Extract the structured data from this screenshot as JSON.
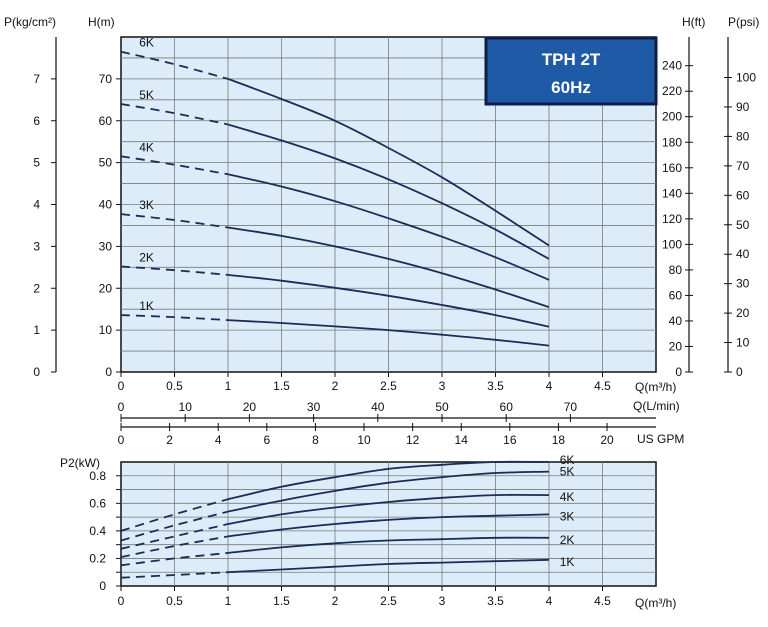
{
  "colors": {
    "plot_bg": "#dcecf9",
    "grid": "#7a7a7a",
    "curve": "#1c2b57",
    "frame": "#111111",
    "badge_bg": "#1f5aa6",
    "badge_border": "#0d1f44"
  },
  "chart_data": [
    {
      "type": "line",
      "title": "TPH 2T",
      "subtitle": "60Hz",
      "xlabel": "Q(m³/h)",
      "ylabel": "H(m)",
      "xlim": [
        0,
        5
      ],
      "ylim": [
        0,
        80
      ],
      "x_ticks": [
        "0",
        "0.5",
        "1",
        "1.5",
        "2",
        "2.5",
        "3",
        "3.5",
        "4",
        "4.5"
      ],
      "y_ticks": [
        "0",
        "10",
        "20",
        "30",
        "40",
        "50",
        "60",
        "70"
      ],
      "grid": true,
      "dashed_below_x": 1,
      "series": [
        {
          "name": "6K",
          "x": [
            0,
            0.5,
            1,
            1.5,
            2,
            2.5,
            3,
            3.5,
            4
          ],
          "y": [
            76.5,
            73.5,
            70,
            65.2,
            60,
            53.5,
            46.5,
            38.5,
            30.2
          ]
        },
        {
          "name": "5K",
          "x": [
            0,
            0.5,
            1,
            1.5,
            2,
            2.5,
            3,
            3.5,
            4
          ],
          "y": [
            64,
            61.8,
            59.1,
            55.3,
            51,
            46,
            40.3,
            34,
            27
          ]
        },
        {
          "name": "4K",
          "x": [
            0,
            0.5,
            1,
            1.5,
            2,
            2.5,
            3,
            3.5,
            4
          ],
          "y": [
            51.5,
            49.5,
            47.2,
            44.3,
            40.8,
            36.7,
            32.3,
            27.4,
            22
          ]
        },
        {
          "name": "3K",
          "x": [
            0,
            0.5,
            1,
            1.5,
            2,
            2.5,
            3,
            3.5,
            4
          ],
          "y": [
            37.7,
            36.3,
            34.5,
            32.5,
            30,
            27,
            23.6,
            19.7,
            15.5
          ]
        },
        {
          "name": "2K",
          "x": [
            0,
            0.5,
            1,
            1.5,
            2,
            2.5,
            3,
            3.5,
            4
          ],
          "y": [
            25.2,
            24.3,
            23.2,
            21.8,
            20.1,
            18.2,
            16,
            13.6,
            10.8
          ]
        },
        {
          "name": "1K",
          "x": [
            0,
            0.5,
            1,
            1.5,
            2,
            2.5,
            3,
            3.5,
            4
          ],
          "y": [
            13.6,
            13.1,
            12.4,
            11.7,
            10.9,
            10,
            8.9,
            7.7,
            6.3
          ]
        }
      ],
      "left_axis": {
        "label": "P(kg/cm²)",
        "ticks": [
          "0",
          "1",
          "2",
          "3",
          "4",
          "5",
          "6",
          "7"
        ],
        "values": [
          0,
          1,
          2,
          3,
          4,
          5,
          6,
          7
        ],
        "per_unit_of_H": 10
      },
      "right_axis_ft": {
        "label": "H(ft)",
        "ticks": [
          "0",
          "20",
          "40",
          "60",
          "80",
          "100",
          "120",
          "140",
          "160",
          "180",
          "200",
          "220",
          "240"
        ],
        "values": [
          0,
          20,
          40,
          60,
          80,
          100,
          120,
          140,
          160,
          180,
          200,
          220,
          240
        ],
        "per_unit_of_H": 3.28084
      },
      "right_axis_psi": {
        "label": "P(psi)",
        "ticks": [
          "0",
          "10",
          "20",
          "30",
          "40",
          "50",
          "60",
          "70",
          "80",
          "90",
          "100"
        ],
        "values": [
          0,
          10,
          20,
          30,
          40,
          50,
          60,
          70,
          80,
          90,
          100
        ],
        "per_unit_of_H": 1.422
      },
      "secondary_x_lmin": {
        "label": "Q(L/min)",
        "ticks": [
          "0",
          "10",
          "20",
          "30",
          "40",
          "50",
          "60",
          "70"
        ],
        "values": [
          0,
          10,
          20,
          30,
          40,
          50,
          60,
          70
        ],
        "per_unit_of_Q": 16.6667
      },
      "secondary_x_gpm": {
        "label": "US GPM",
        "ticks": [
          "0",
          "2",
          "4",
          "6",
          "8",
          "10",
          "12",
          "14",
          "16",
          "18",
          "20"
        ],
        "values": [
          0,
          2,
          4,
          6,
          8,
          10,
          12,
          14,
          16,
          18,
          20
        ],
        "per_unit_of_Q": 4.4029
      }
    },
    {
      "type": "line",
      "xlabel": "Q(m³/h)",
      "ylabel": "P2(kW)",
      "xlim": [
        0,
        5
      ],
      "ylim": [
        0,
        0.9
      ],
      "x_ticks": [
        "0",
        "0.5",
        "1",
        "1.5",
        "2",
        "2.5",
        "3",
        "3.5",
        "4",
        "4.5"
      ],
      "y_ticks": [
        "0",
        "0.2",
        "0.4",
        "0.6",
        "0.8"
      ],
      "y_tick_values": [
        0,
        0.2,
        0.4,
        0.6,
        0.8
      ],
      "y_minor_values": [
        0.1,
        0.3,
        0.5,
        0.7
      ],
      "grid": true,
      "dashed_below_x": 1,
      "series": [
        {
          "name": "6K",
          "x": [
            0,
            0.5,
            1,
            1.5,
            2,
            2.5,
            3,
            3.5,
            4
          ],
          "y": [
            0.4,
            0.52,
            0.63,
            0.72,
            0.79,
            0.85,
            0.88,
            0.9,
            0.9
          ]
        },
        {
          "name": "5K",
          "x": [
            0,
            0.5,
            1,
            1.5,
            2,
            2.5,
            3,
            3.5,
            4
          ],
          "y": [
            0.33,
            0.44,
            0.54,
            0.62,
            0.69,
            0.75,
            0.79,
            0.82,
            0.83
          ]
        },
        {
          "name": "4K",
          "x": [
            0,
            0.5,
            1,
            1.5,
            2,
            2.5,
            3,
            3.5,
            4
          ],
          "y": [
            0.27,
            0.36,
            0.45,
            0.52,
            0.57,
            0.61,
            0.64,
            0.66,
            0.66
          ]
        },
        {
          "name": "3K",
          "x": [
            0,
            0.5,
            1,
            1.5,
            2,
            2.5,
            3,
            3.5,
            4
          ],
          "y": [
            0.21,
            0.29,
            0.36,
            0.41,
            0.45,
            0.48,
            0.5,
            0.51,
            0.52
          ]
        },
        {
          "name": "2K",
          "x": [
            0,
            0.5,
            1,
            1.5,
            2,
            2.5,
            3,
            3.5,
            4
          ],
          "y": [
            0.15,
            0.2,
            0.24,
            0.28,
            0.31,
            0.33,
            0.34,
            0.35,
            0.35
          ]
        },
        {
          "name": "1K",
          "x": [
            0,
            0.5,
            1,
            1.5,
            2,
            2.5,
            3,
            3.5,
            4
          ],
          "y": [
            0.06,
            0.08,
            0.1,
            0.12,
            0.14,
            0.16,
            0.17,
            0.18,
            0.19
          ]
        }
      ]
    }
  ]
}
